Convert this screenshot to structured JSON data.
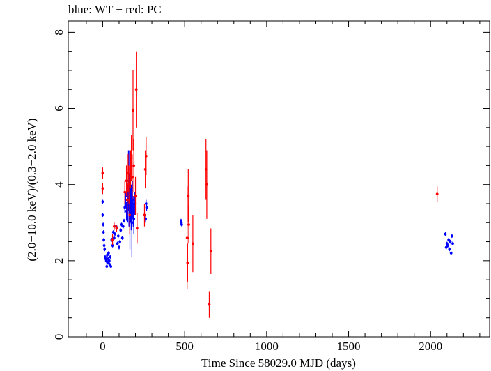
{
  "chart_data": {
    "type": "scatter",
    "title": "blue: WT − red: PC",
    "xlabel": "Time Since 58029.0 MJD (days)",
    "ylabel": "(2.0−10.0 keV)/(0.3−2.0 keV)",
    "xlim": [
      -210,
      2360
    ],
    "ylim": [
      0,
      8.3
    ],
    "xticks": [
      0,
      500,
      1000,
      1500,
      2000
    ],
    "yticks": [
      0,
      2,
      4,
      6,
      8
    ],
    "grid": false,
    "series": [
      {
        "name": "WT",
        "color": "#0000ff",
        "points": [
          {
            "x": 0,
            "y": 3.2,
            "err": 0.05
          },
          {
            "x": 3,
            "y": 2.95,
            "err": 0.05
          },
          {
            "x": 5,
            "y": 2.75,
            "err": 0.05
          },
          {
            "x": 7,
            "y": 2.55,
            "err": 0.05
          },
          {
            "x": 9,
            "y": 2.4,
            "err": 0.05
          },
          {
            "x": 12,
            "y": 2.3,
            "err": 0.05
          },
          {
            "x": 15,
            "y": 2.1,
            "err": 0.05
          },
          {
            "x": 18,
            "y": 2.05,
            "err": 0.05
          },
          {
            "x": 22,
            "y": 2.0,
            "err": 0.05
          },
          {
            "x": 25,
            "y": 1.85,
            "err": 0.05
          },
          {
            "x": 28,
            "y": 2.15,
            "err": 0.05
          },
          {
            "x": 30,
            "y": 1.95,
            "err": 0.05
          },
          {
            "x": 33,
            "y": 2.05,
            "err": 0.05
          },
          {
            "x": 36,
            "y": 2.2,
            "err": 0.05
          },
          {
            "x": 40,
            "y": 2.0,
            "err": 0.05
          },
          {
            "x": 43,
            "y": 1.9,
            "err": 0.05
          },
          {
            "x": 46,
            "y": 2.1,
            "err": 0.05
          },
          {
            "x": 50,
            "y": 1.85,
            "err": 0.05
          },
          {
            "x": 0,
            "y": 3.55,
            "err": 0.05
          },
          {
            "x": 55,
            "y": 2.55,
            "err": 0.05
          },
          {
            "x": 60,
            "y": 2.4,
            "err": 0.05
          },
          {
            "x": 65,
            "y": 2.75,
            "err": 0.05
          },
          {
            "x": 70,
            "y": 2.6,
            "err": 0.05
          },
          {
            "x": 75,
            "y": 2.7,
            "err": 0.05
          },
          {
            "x": 82,
            "y": 2.9,
            "err": 0.05
          },
          {
            "x": 90,
            "y": 2.45,
            "err": 0.05
          },
          {
            "x": 95,
            "y": 2.65,
            "err": 0.05
          },
          {
            "x": 100,
            "y": 2.35,
            "err": 0.05
          },
          {
            "x": 105,
            "y": 2.5,
            "err": 0.05
          },
          {
            "x": 110,
            "y": 2.8,
            "err": 0.05
          },
          {
            "x": 115,
            "y": 2.95,
            "err": 0.05
          },
          {
            "x": 120,
            "y": 2.6,
            "err": 0.05
          },
          {
            "x": 125,
            "y": 2.9,
            "err": 0.05
          },
          {
            "x": 130,
            "y": 3.05,
            "err": 0.05
          },
          {
            "x": 135,
            "y": 3.4,
            "err": 0.15
          },
          {
            "x": 140,
            "y": 3.6,
            "err": 0.2
          },
          {
            "x": 145,
            "y": 3.3,
            "err": 0.25
          },
          {
            "x": 150,
            "y": 3.7,
            "err": 0.35
          },
          {
            "x": 153,
            "y": 3.5,
            "err": 0.5
          },
          {
            "x": 157,
            "y": 4.1,
            "err": 0.8
          },
          {
            "x": 160,
            "y": 3.9,
            "err": 1.0
          },
          {
            "x": 163,
            "y": 3.6,
            "err": 0.7
          },
          {
            "x": 166,
            "y": 3.2,
            "err": 0.9
          },
          {
            "x": 170,
            "y": 3.8,
            "err": 0.8
          },
          {
            "x": 174,
            "y": 3.4,
            "err": 0.6
          },
          {
            "x": 178,
            "y": 3.0,
            "err": 0.9
          },
          {
            "x": 182,
            "y": 3.6,
            "err": 0.5
          },
          {
            "x": 186,
            "y": 3.3,
            "err": 0.4
          },
          {
            "x": 190,
            "y": 3.1,
            "err": 0.4
          },
          {
            "x": 195,
            "y": 3.5,
            "err": 0.3
          },
          {
            "x": 262,
            "y": 3.1,
            "err": 0.1
          },
          {
            "x": 265,
            "y": 3.5,
            "err": 0.1
          },
          {
            "x": 268,
            "y": 3.4,
            "err": 0.1
          },
          {
            "x": 478,
            "y": 3.05,
            "err": 0.05
          },
          {
            "x": 480,
            "y": 3.0,
            "err": 0.05
          },
          {
            "x": 482,
            "y": 2.95,
            "err": 0.05
          },
          {
            "x": 2090,
            "y": 2.7,
            "err": 0.05
          },
          {
            "x": 2095,
            "y": 2.35,
            "err": 0.05
          },
          {
            "x": 2100,
            "y": 2.45,
            "err": 0.05
          },
          {
            "x": 2105,
            "y": 2.4,
            "err": 0.05
          },
          {
            "x": 2110,
            "y": 2.55,
            "err": 0.05
          },
          {
            "x": 2115,
            "y": 2.3,
            "err": 0.05
          },
          {
            "x": 2120,
            "y": 2.5,
            "err": 0.05
          },
          {
            "x": 2125,
            "y": 2.2,
            "err": 0.05
          },
          {
            "x": 2130,
            "y": 2.65,
            "err": 0.05
          },
          {
            "x": 2135,
            "y": 2.45,
            "err": 0.05
          }
        ]
      },
      {
        "name": "PC",
        "color": "#ff0000",
        "points": [
          {
            "x": 0,
            "y": 4.3,
            "err": 0.15
          },
          {
            "x": 0,
            "y": 3.9,
            "err": 0.15
          },
          {
            "x": 60,
            "y": 2.55,
            "err": 0.15
          },
          {
            "x": 70,
            "y": 2.9,
            "err": 0.1
          },
          {
            "x": 85,
            "y": 2.85,
            "err": 0.1
          },
          {
            "x": 135,
            "y": 3.8,
            "err": 0.3
          },
          {
            "x": 145,
            "y": 4.1,
            "err": 0.4
          },
          {
            "x": 150,
            "y": 3.6,
            "err": 0.4
          },
          {
            "x": 155,
            "y": 4.3,
            "err": 0.5
          },
          {
            "x": 160,
            "y": 4.0,
            "err": 0.5
          },
          {
            "x": 165,
            "y": 3.2,
            "err": 0.5
          },
          {
            "x": 170,
            "y": 4.4,
            "err": 0.5
          },
          {
            "x": 175,
            "y": 4.7,
            "err": 0.6
          },
          {
            "x": 180,
            "y": 4.2,
            "err": 0.6
          },
          {
            "x": 185,
            "y": 5.95,
            "err": 1.05
          },
          {
            "x": 190,
            "y": 4.5,
            "err": 0.7
          },
          {
            "x": 200,
            "y": 3.7,
            "err": 0.5
          },
          {
            "x": 205,
            "y": 6.5,
            "err": 1.0
          },
          {
            "x": 210,
            "y": 2.85,
            "err": 0.4
          },
          {
            "x": 255,
            "y": 3.2,
            "err": 0.3
          },
          {
            "x": 260,
            "y": 4.4,
            "err": 0.5
          },
          {
            "x": 265,
            "y": 4.75,
            "err": 0.5
          },
          {
            "x": 515,
            "y": 2.6,
            "err": 1.35
          },
          {
            "x": 518,
            "y": 1.95,
            "err": 0.5
          },
          {
            "x": 522,
            "y": 3.7,
            "err": 0.7
          },
          {
            "x": 525,
            "y": 2.95,
            "err": 0.5
          },
          {
            "x": 550,
            "y": 2.45,
            "err": 0.75
          },
          {
            "x": 630,
            "y": 4.4,
            "err": 0.8
          },
          {
            "x": 635,
            "y": 4.0,
            "err": 0.9
          },
          {
            "x": 650,
            "y": 0.85,
            "err": 0.35
          },
          {
            "x": 660,
            "y": 2.25,
            "err": 0.6
          },
          {
            "x": 2040,
            "y": 3.75,
            "err": 0.2
          }
        ]
      }
    ]
  }
}
